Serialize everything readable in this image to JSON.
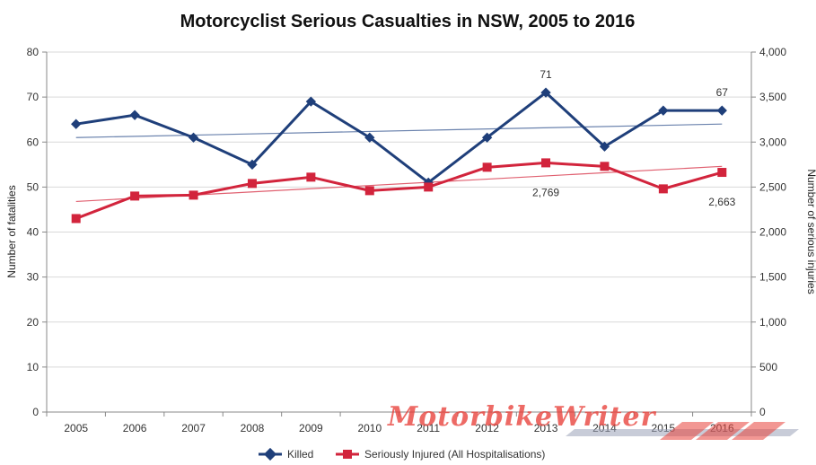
{
  "chart_data": {
    "type": "line",
    "title": "Motorcyclist Serious Casualties in NSW, 2005 to 2016",
    "x": [
      "2005",
      "2006",
      "2007",
      "2008",
      "2009",
      "2010",
      "2011",
      "2012",
      "2013",
      "2014",
      "2015",
      "2016"
    ],
    "y_left": {
      "label": "Number of fatalities",
      "lim": [
        0,
        80
      ],
      "ticks": [
        0,
        10,
        20,
        30,
        40,
        50,
        60,
        70,
        80
      ],
      "tick_labels": [
        "0",
        "10",
        "20",
        "30",
        "40",
        "50",
        "60",
        "70",
        "80"
      ]
    },
    "y_right": {
      "label": "Number of serious injuries",
      "lim": [
        0,
        4000
      ],
      "ticks": [
        0,
        500,
        1000,
        1500,
        2000,
        2500,
        3000,
        3500,
        4000
      ],
      "tick_labels": [
        "0",
        "500",
        "1,000",
        "1,500",
        "2,000",
        "2,500",
        "3,000",
        "3,500",
        "4,000"
      ]
    },
    "series": [
      {
        "name": "Killed",
        "axis": "left",
        "color": "#1f3f7a",
        "marker": "diamond",
        "values": [
          64,
          66,
          61,
          55,
          69,
          61,
          51,
          61,
          71,
          59,
          67,
          67
        ],
        "trendline": {
          "color": "#6a82ad",
          "start": 61.0,
          "end": 64.0
        }
      },
      {
        "name": "Seriously Injured (All Hospitalisations)",
        "axis": "right",
        "color": "#d2243c",
        "marker": "square",
        "values": [
          2150,
          2400,
          2410,
          2540,
          2610,
          2460,
          2500,
          2720,
          2769,
          2730,
          2480,
          2663
        ],
        "trendline": {
          "color": "#e06070",
          "start": 2340,
          "end": 2730
        }
      }
    ],
    "annotations": [
      {
        "series": 0,
        "index": 8,
        "text": "71",
        "position": "above"
      },
      {
        "series": 0,
        "index": 11,
        "text": "67",
        "position": "above"
      },
      {
        "series": 1,
        "index": 8,
        "text": "2,769",
        "position": "below"
      },
      {
        "series": 1,
        "index": 11,
        "text": "2,663",
        "position": "below"
      }
    ],
    "grid": true,
    "legend": "bottom"
  },
  "watermark": {
    "text": "MotorbikeWriter"
  }
}
